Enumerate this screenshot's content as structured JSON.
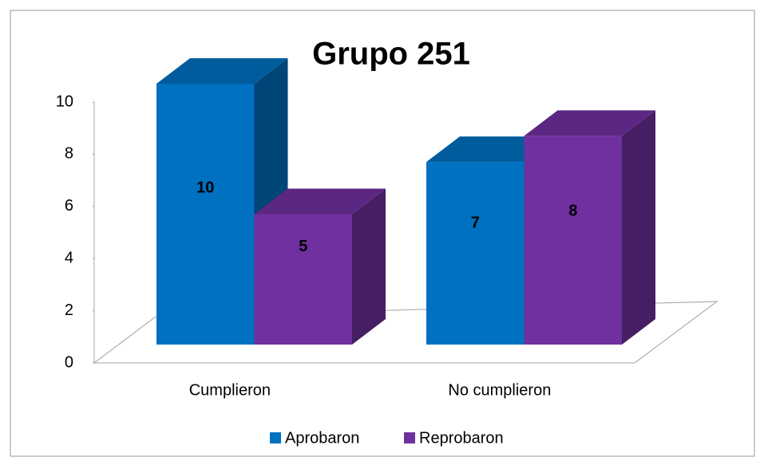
{
  "chart_data": {
    "type": "bar3d",
    "title": "Grupo 251",
    "categories": [
      "Cumplieron",
      "No cumplieron"
    ],
    "series": [
      {
        "name": "Aprobaron",
        "color": "#0070c0",
        "values": [
          10,
          7
        ]
      },
      {
        "name": "Reprobaron",
        "color": "#7030a0",
        "values": [
          5,
          8
        ]
      }
    ],
    "ylim": [
      0,
      10
    ],
    "yticks": [
      0,
      2,
      4,
      6,
      8,
      10
    ],
    "legend": "bottom"
  }
}
